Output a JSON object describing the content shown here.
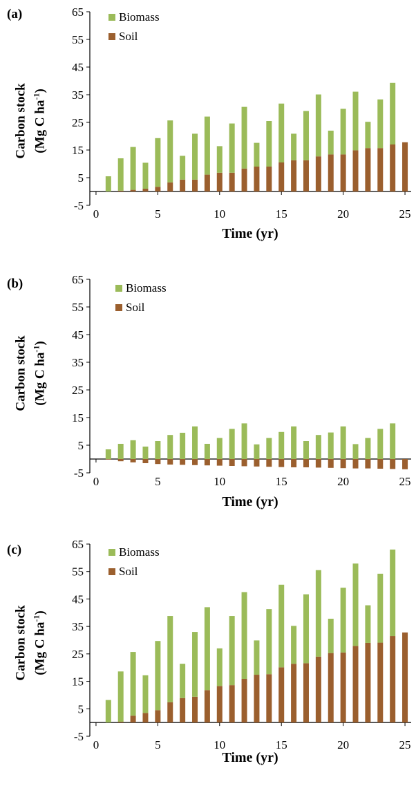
{
  "colors": {
    "biomass": "#9bbb59",
    "soil": "#9b5f2e",
    "axis": "#000000"
  },
  "chart_data": [
    {
      "type": "bar",
      "panel_label": "(a)",
      "ylabel_line1": "Carbon stock",
      "ylabel_line2_main": "(Mg C ha",
      "ylabel_line2_sup": "-1",
      "ylabel_line2_end": ")",
      "xlabel": "Time (yr)",
      "ylim": [
        -5,
        65
      ],
      "xlim": [
        -0.5,
        25.5
      ],
      "yticks": [
        -5,
        5,
        15,
        25,
        35,
        45,
        55,
        65
      ],
      "xticks": [
        0,
        5,
        10,
        15,
        20,
        25
      ],
      "legend": [
        "Biomass",
        "Soil"
      ],
      "x": [
        1,
        2,
        3,
        4,
        5,
        6,
        7,
        8,
        9,
        10,
        11,
        12,
        13,
        14,
        15,
        16,
        17,
        18,
        19,
        20,
        21,
        22,
        23,
        24,
        25
      ],
      "series": [
        {
          "name": "Soil",
          "values": [
            0,
            0.3,
            0.6,
            1.0,
            1.7,
            3.3,
            4.3,
            4.3,
            6.1,
            6.8,
            6.8,
            8.3,
            9.0,
            9.0,
            10.5,
            11.3,
            11.3,
            12.7,
            13.4,
            13.4,
            14.9,
            15.7,
            15.7,
            17.0,
            17.8
          ]
        },
        {
          "name": "Biomass",
          "values": [
            5.5,
            11.7,
            15.5,
            9.4,
            17.6,
            22.4,
            8.6,
            16.6,
            21.0,
            9.6,
            17.8,
            22.3,
            8.6,
            16.5,
            21.3,
            9.6,
            17.8,
            22.4,
            8.6,
            16.5,
            21.2,
            9.5,
            17.6,
            22.3,
            0
          ]
        }
      ]
    },
    {
      "type": "bar",
      "panel_label": "(b)",
      "ylabel_line1": "Carbon stock",
      "ylabel_line2_main": "(Mg C ha",
      "ylabel_line2_sup": "-1",
      "ylabel_line2_end": ")",
      "xlabel": "Time (yr)",
      "ylim": [
        -5,
        65
      ],
      "xlim": [
        -0.5,
        25.5
      ],
      "yticks": [
        -5,
        5,
        15,
        25,
        35,
        45,
        55,
        65
      ],
      "xticks": [
        0,
        5,
        10,
        15,
        20,
        25
      ],
      "legend": [
        "Biomass",
        "Soil"
      ],
      "x": [
        1,
        2,
        3,
        4,
        5,
        6,
        7,
        8,
        9,
        10,
        11,
        12,
        13,
        14,
        15,
        16,
        17,
        18,
        19,
        20,
        21,
        22,
        23,
        24,
        25
      ],
      "series": [
        {
          "name": "Soil",
          "values": [
            -0.2,
            -0.8,
            -1.2,
            -1.5,
            -1.8,
            -2.0,
            -2.1,
            -2.2,
            -2.3,
            -2.4,
            -2.5,
            -2.6,
            -2.7,
            -2.8,
            -2.9,
            -3.0,
            -3.0,
            -3.1,
            -3.2,
            -3.3,
            -3.4,
            -3.4,
            -3.5,
            -3.6,
            -3.7
          ]
        },
        {
          "name": "Biomass",
          "values": [
            3.5,
            5.5,
            6.8,
            4.5,
            6.5,
            8.7,
            9.5,
            11.8,
            5.5,
            7.6,
            10.9,
            12.9,
            5.3,
            7.6,
            9.8,
            11.8,
            6.5,
            8.7,
            9.6,
            11.8,
            5.4,
            7.6,
            10.9,
            12.9,
            0
          ]
        }
      ]
    },
    {
      "type": "bar",
      "panel_label": "(c)",
      "ylabel_line1": "Carbon stock",
      "ylabel_line2_main": "(Mg C ha",
      "ylabel_line2_sup": "-1",
      "ylabel_line2_end": ")",
      "xlabel": "Time (yr)",
      "ylim": [
        -5,
        65
      ],
      "xlim": [
        -0.5,
        25.5
      ],
      "yticks": [
        -5,
        5,
        15,
        25,
        35,
        45,
        55,
        65
      ],
      "xticks": [
        0,
        5,
        10,
        15,
        20,
        25
      ],
      "legend": [
        "Biomass",
        "Soil"
      ],
      "x": [
        1,
        2,
        3,
        4,
        5,
        6,
        7,
        8,
        9,
        10,
        11,
        12,
        13,
        14,
        15,
        16,
        17,
        18,
        19,
        20,
        21,
        22,
        23,
        24,
        25
      ],
      "series": [
        {
          "name": "Soil",
          "values": [
            0,
            0.3,
            2.5,
            3.5,
            4.5,
            7.4,
            8.9,
            9.4,
            11.8,
            13.3,
            13.6,
            15.9,
            17.4,
            17.6,
            20.1,
            21.4,
            21.6,
            24.0,
            25.3,
            25.5,
            27.9,
            29.0,
            29.1,
            31.5,
            32.8
          ]
        },
        {
          "name": "Biomass",
          "values": [
            8.2,
            18.3,
            23.2,
            13.7,
            25.2,
            31.4,
            12.5,
            23.6,
            30.2,
            13.7,
            25.2,
            31.6,
            12.5,
            23.7,
            30.1,
            13.8,
            25.1,
            31.5,
            12.5,
            23.6,
            30.0,
            13.7,
            25.1,
            31.5,
            0
          ]
        }
      ]
    }
  ]
}
